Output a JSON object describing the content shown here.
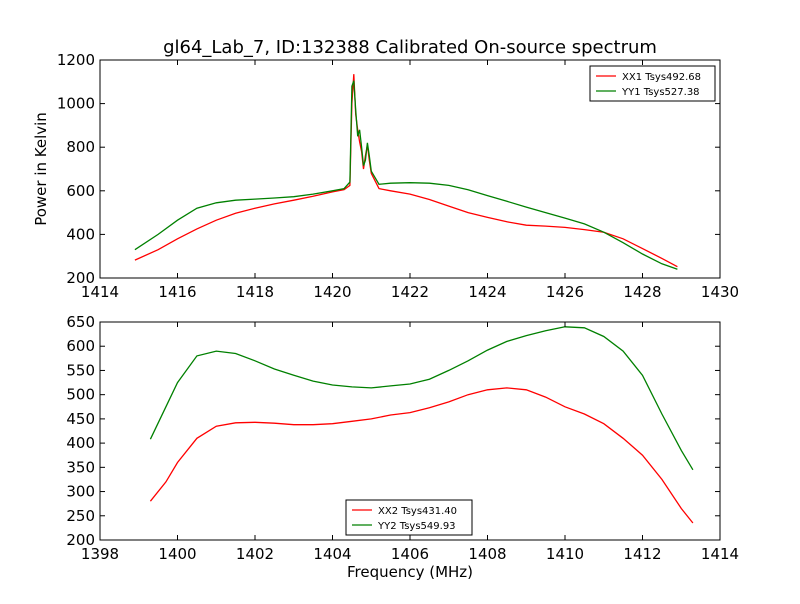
{
  "title": "gl64_Lab_7, ID:132388 Calibrated On-source spectrum",
  "chart_data": [
    {
      "type": "line",
      "ylabel": "Power in Kelvin",
      "xlabel": "",
      "xlim": [
        1414,
        1430
      ],
      "ylim": [
        200,
        1200
      ],
      "xticks": [
        "1414",
        "1416",
        "1418",
        "1420",
        "1422",
        "1424",
        "1426",
        "1428",
        "1430"
      ],
      "yticks": [
        "200",
        "400",
        "600",
        "800",
        "1000",
        "1200"
      ],
      "legend_position": "top-right",
      "series": [
        {
          "name": "XX1 Tsys492.68",
          "color": "#ff0000",
          "points": [
            [
              1414.9,
              282
            ],
            [
              1415.5,
              330
            ],
            [
              1416,
              380
            ],
            [
              1416.5,
              425
            ],
            [
              1417,
              465
            ],
            [
              1417.5,
              497
            ],
            [
              1418,
              520
            ],
            [
              1418.5,
              540
            ],
            [
              1419,
              557
            ],
            [
              1419.5,
              575
            ],
            [
              1420,
              595
            ],
            [
              1420.3,
              605
            ],
            [
              1420.45,
              625
            ],
            [
              1420.5,
              1000
            ],
            [
              1420.55,
              1135
            ],
            [
              1420.6,
              950
            ],
            [
              1420.65,
              880
            ],
            [
              1420.7,
              825
            ],
            [
              1420.75,
              780
            ],
            [
              1420.8,
              700
            ],
            [
              1420.85,
              760
            ],
            [
              1420.9,
              810
            ],
            [
              1420.95,
              740
            ],
            [
              1421,
              680
            ],
            [
              1421.2,
              610
            ],
            [
              1421.5,
              600
            ],
            [
              1422,
              585
            ],
            [
              1422.5,
              560
            ],
            [
              1423,
              530
            ],
            [
              1423.5,
              500
            ],
            [
              1424,
              478
            ],
            [
              1424.5,
              458
            ],
            [
              1425,
              442
            ],
            [
              1425.5,
              438
            ],
            [
              1426,
              432
            ],
            [
              1426.5,
              422
            ],
            [
              1427,
              410
            ],
            [
              1427.5,
              380
            ],
            [
              1428,
              335
            ],
            [
              1428.5,
              290
            ],
            [
              1428.9,
              252
            ]
          ]
        },
        {
          "name": "YY1 Tsys527.38",
          "color": "#008000",
          "points": [
            [
              1414.9,
              330
            ],
            [
              1415.5,
              400
            ],
            [
              1416,
              465
            ],
            [
              1416.5,
              520
            ],
            [
              1417,
              545
            ],
            [
              1417.5,
              557
            ],
            [
              1418,
              562
            ],
            [
              1418.5,
              567
            ],
            [
              1419,
              573
            ],
            [
              1419.5,
              585
            ],
            [
              1420,
              600
            ],
            [
              1420.3,
              610
            ],
            [
              1420.45,
              640
            ],
            [
              1420.5,
              1080
            ],
            [
              1420.55,
              1105
            ],
            [
              1420.6,
              970
            ],
            [
              1420.65,
              850
            ],
            [
              1420.7,
              880
            ],
            [
              1420.75,
              800
            ],
            [
              1420.8,
              715
            ],
            [
              1420.85,
              740
            ],
            [
              1420.9,
              820
            ],
            [
              1420.95,
              760
            ],
            [
              1421,
              690
            ],
            [
              1421.2,
              630
            ],
            [
              1421.5,
              635
            ],
            [
              1422,
              637
            ],
            [
              1422.5,
              635
            ],
            [
              1423,
              625
            ],
            [
              1423.5,
              605
            ],
            [
              1424,
              578
            ],
            [
              1424.5,
              552
            ],
            [
              1425,
              525
            ],
            [
              1425.5,
              500
            ],
            [
              1426,
              475
            ],
            [
              1426.5,
              448
            ],
            [
              1427,
              410
            ],
            [
              1427.5,
              362
            ],
            [
              1428,
              310
            ],
            [
              1428.5,
              265
            ],
            [
              1428.9,
              240
            ]
          ]
        }
      ]
    },
    {
      "type": "line",
      "ylabel": "",
      "xlabel": "Frequency (MHz)",
      "xlim": [
        1398,
        1414
      ],
      "ylim": [
        200,
        650
      ],
      "xticks": [
        "1398",
        "1400",
        "1402",
        "1404",
        "1406",
        "1408",
        "1410",
        "1412",
        "1414"
      ],
      "yticks": [
        "200",
        "250",
        "300",
        "350",
        "400",
        "450",
        "500",
        "550",
        "600",
        "650"
      ],
      "legend_position": "lower-center",
      "series": [
        {
          "name": "XX2 Tsys431.40",
          "color": "#ff0000",
          "points": [
            [
              1399.3,
              280
            ],
            [
              1399.7,
              320
            ],
            [
              1400,
              360
            ],
            [
              1400.5,
              410
            ],
            [
              1401,
              435
            ],
            [
              1401.5,
              442
            ],
            [
              1402,
              443
            ],
            [
              1402.5,
              441
            ],
            [
              1403,
              438
            ],
            [
              1403.5,
              438
            ],
            [
              1404,
              440
            ],
            [
              1404.5,
              445
            ],
            [
              1405,
              450
            ],
            [
              1405.5,
              458
            ],
            [
              1406,
              463
            ],
            [
              1406.5,
              473
            ],
            [
              1407,
              485
            ],
            [
              1407.5,
              500
            ],
            [
              1408,
              510
            ],
            [
              1408.5,
              514
            ],
            [
              1409,
              510
            ],
            [
              1409.5,
              495
            ],
            [
              1410,
              475
            ],
            [
              1410.5,
              460
            ],
            [
              1411,
              440
            ],
            [
              1411.5,
              410
            ],
            [
              1412,
              375
            ],
            [
              1412.5,
              325
            ],
            [
              1413,
              265
            ],
            [
              1413.3,
              235
            ]
          ]
        },
        {
          "name": "YY2 Tsys549.93",
          "color": "#008000",
          "points": [
            [
              1399.3,
              408
            ],
            [
              1399.7,
              475
            ],
            [
              1400,
              525
            ],
            [
              1400.5,
              580
            ],
            [
              1401,
              590
            ],
            [
              1401.5,
              585
            ],
            [
              1402,
              570
            ],
            [
              1402.5,
              553
            ],
            [
              1403,
              540
            ],
            [
              1403.5,
              528
            ],
            [
              1404,
              520
            ],
            [
              1404.5,
              516
            ],
            [
              1405,
              514
            ],
            [
              1405.5,
              518
            ],
            [
              1406,
              522
            ],
            [
              1406.5,
              532
            ],
            [
              1407,
              550
            ],
            [
              1407.5,
              570
            ],
            [
              1408,
              592
            ],
            [
              1408.5,
              610
            ],
            [
              1409,
              622
            ],
            [
              1409.5,
              632
            ],
            [
              1410,
              640
            ],
            [
              1410.5,
              638
            ],
            [
              1411,
              620
            ],
            [
              1411.5,
              590
            ],
            [
              1412,
              540
            ],
            [
              1412.5,
              460
            ],
            [
              1413,
              385
            ],
            [
              1413.3,
              345
            ]
          ]
        }
      ]
    }
  ]
}
